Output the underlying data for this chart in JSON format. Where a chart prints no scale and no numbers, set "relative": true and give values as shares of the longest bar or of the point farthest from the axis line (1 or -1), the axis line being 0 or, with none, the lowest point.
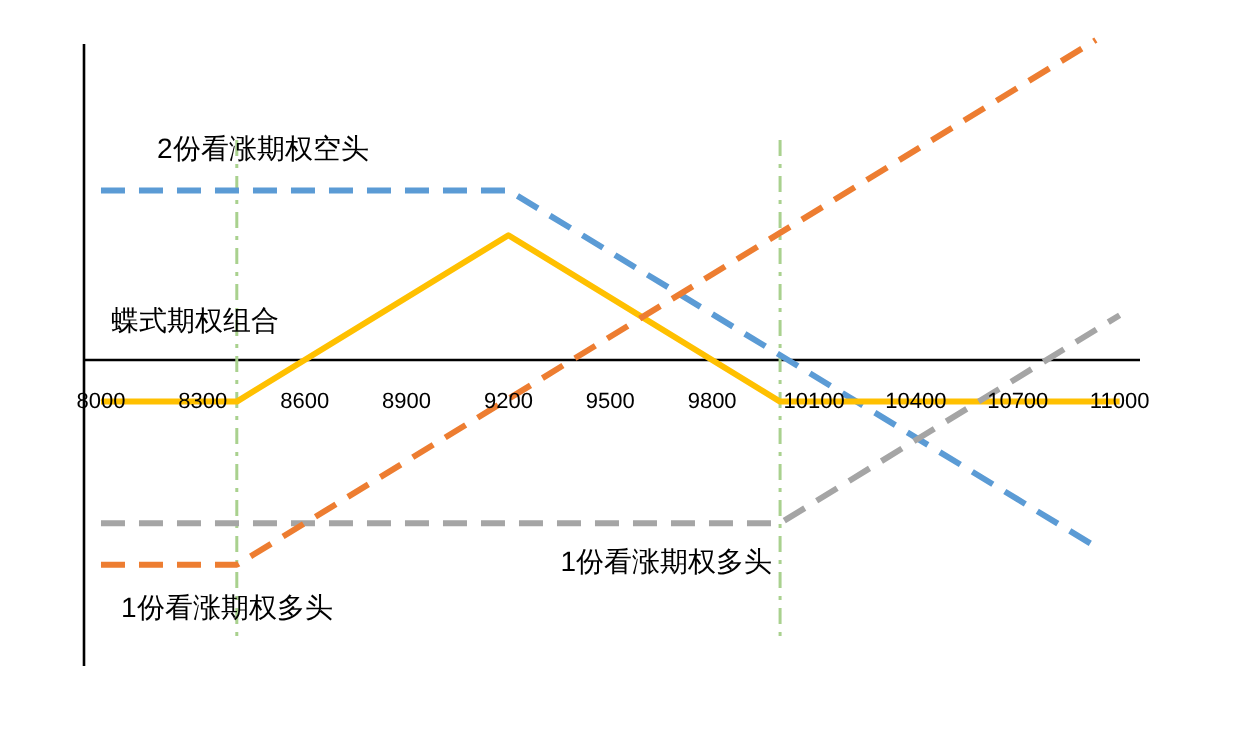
{
  "chart_data": {
    "type": "line",
    "relative": true,
    "line_style": "dashed",
    "xlim": [
      7950,
      11060
    ],
    "xticks": [
      8000,
      8300,
      8600,
      8900,
      9200,
      9500,
      9800,
      10100,
      10400,
      10700,
      11000
    ],
    "ref_lines": [
      {
        "axis": "x",
        "value": 8400,
        "color": "#a9d18e",
        "line_style": "dash-dot"
      },
      {
        "axis": "x",
        "value": 10000,
        "color": "#a9d18e",
        "line_style": "dash-dot"
      }
    ],
    "series": [
      {
        "name": "2份看涨期权空头",
        "color": "#5b9bd5",
        "x": [
          8000,
          9200,
          10940
        ],
        "values": [
          0.53,
          0.53,
          -0.59
        ]
      },
      {
        "name": "蝶式期权组合",
        "color": "#ffc000",
        "line_style": "solid",
        "x": [
          8000,
          8400,
          9200,
          10000,
          11000
        ],
        "values": [
          -0.13,
          -0.13,
          0.39,
          -0.13,
          -0.13
        ]
      },
      {
        "name": "1份看涨期权多头",
        "color": "#a5a5a5",
        "x": [
          8000,
          10000,
          11000
        ],
        "values": [
          -0.51,
          -0.51,
          0.14
        ]
      },
      {
        "name": "1份看涨期权多头",
        "color": "#ed7d31",
        "x": [
          8000,
          8400,
          10930
        ],
        "values": [
          -0.64,
          -0.64,
          1.0
        ]
      }
    ]
  }
}
